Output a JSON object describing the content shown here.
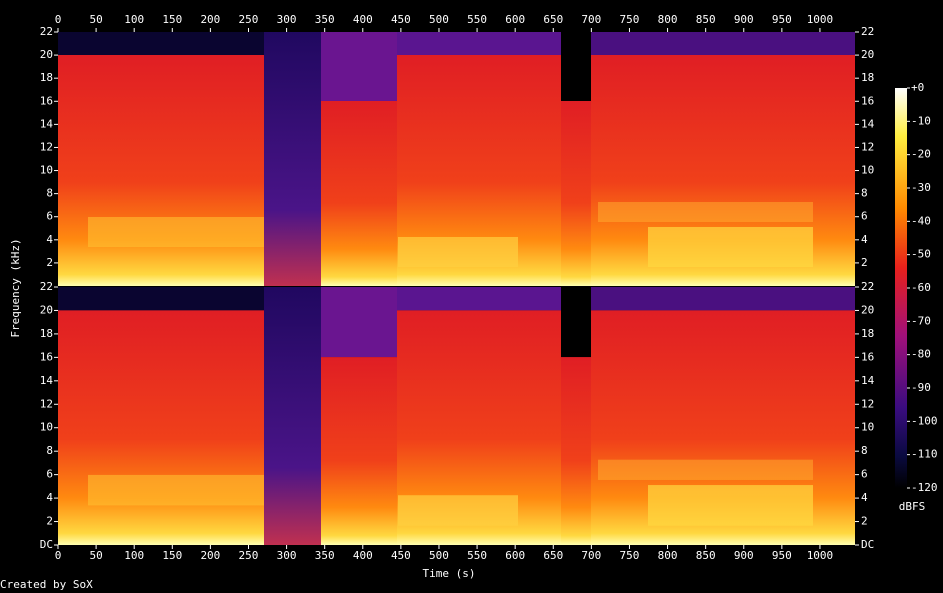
{
  "chart_data": {
    "type": "spectrogram",
    "x_label": "Time (s)",
    "y_label": "Frequency (kHz)",
    "xlim": [
      0,
      1046
    ],
    "xticks": [
      0,
      50,
      100,
      150,
      200,
      250,
      300,
      350,
      400,
      450,
      500,
      550,
      600,
      650,
      700,
      750,
      800,
      850,
      900,
      950,
      1000
    ],
    "panels": [
      {
        "ylim": [
          0,
          22
        ],
        "yticks": [
          2,
          4,
          6,
          8,
          10,
          12,
          14,
          16,
          18,
          20,
          22
        ]
      },
      {
        "ylim": [
          0,
          22
        ],
        "yticks": [
          {
            "value": 0,
            "label": "DC"
          },
          2,
          4,
          6,
          8,
          10,
          12,
          14,
          16,
          18,
          20,
          22
        ]
      }
    ],
    "colorbar": {
      "label": "dBFS",
      "lim": [
        -120,
        0
      ],
      "ticks": [
        {
          "value": 0,
          "label": "+0"
        },
        -10,
        -20,
        -30,
        -40,
        -50,
        -60,
        -70,
        -80,
        -90,
        -100,
        -110,
        -120
      ]
    }
  },
  "footer": "Created by SoX"
}
